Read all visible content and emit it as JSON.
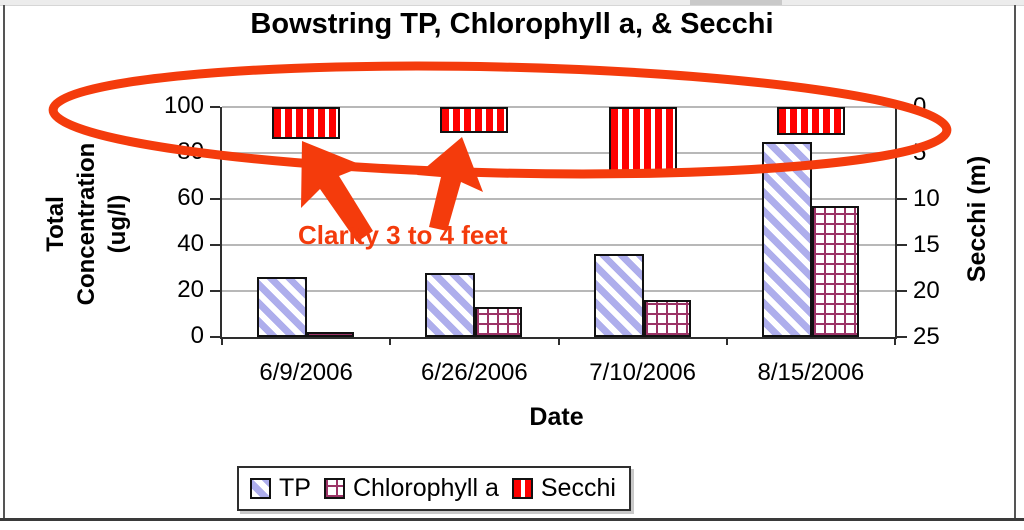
{
  "chart_data": {
    "type": "bar",
    "title": "Bowstring TP, Chlorophyll a, & Secchi",
    "xlabel": "Date",
    "ylabel_left_lines": [
      "Total",
      "Concentration",
      "(ug/l)"
    ],
    "ylabel_right": "Secchi (m)",
    "categories": [
      "6/9/2006",
      "6/26/2006",
      "7/10/2006",
      "8/15/2006"
    ],
    "series": [
      {
        "name": "TP",
        "axis": "left",
        "values": [
          26,
          28,
          36,
          85
        ]
      },
      {
        "name": "Chlorophyll a",
        "axis": "left",
        "values": [
          2,
          13,
          16,
          57
        ]
      },
      {
        "name": "Secchi",
        "axis": "right",
        "values": [
          3.5,
          2.8,
          7.2,
          3.0
        ]
      }
    ],
    "left_axis": {
      "ticks": [
        0,
        20,
        40,
        60,
        80,
        100
      ],
      "range": [
        0,
        100
      ]
    },
    "right_axis": {
      "ticks": [
        0,
        5,
        10,
        15,
        20,
        25
      ],
      "range": [
        0,
        25
      ],
      "inverted": true
    },
    "grid": true,
    "legend_position": "bottom",
    "legend_items": [
      "TP",
      "Chlorophyll a",
      "Secchi"
    ]
  },
  "annotation": {
    "text": "Clarity 3 to 4 feet",
    "color": "#f43b0c"
  },
  "colors": {
    "annotation_red": "#f43b0c",
    "secchi_stripe": "#fe0000",
    "tp_stripe": "#aeaeec",
    "chl_grid": "#9c3366",
    "gridline": "#b8b8b8",
    "axis": "#2e2e2e"
  }
}
